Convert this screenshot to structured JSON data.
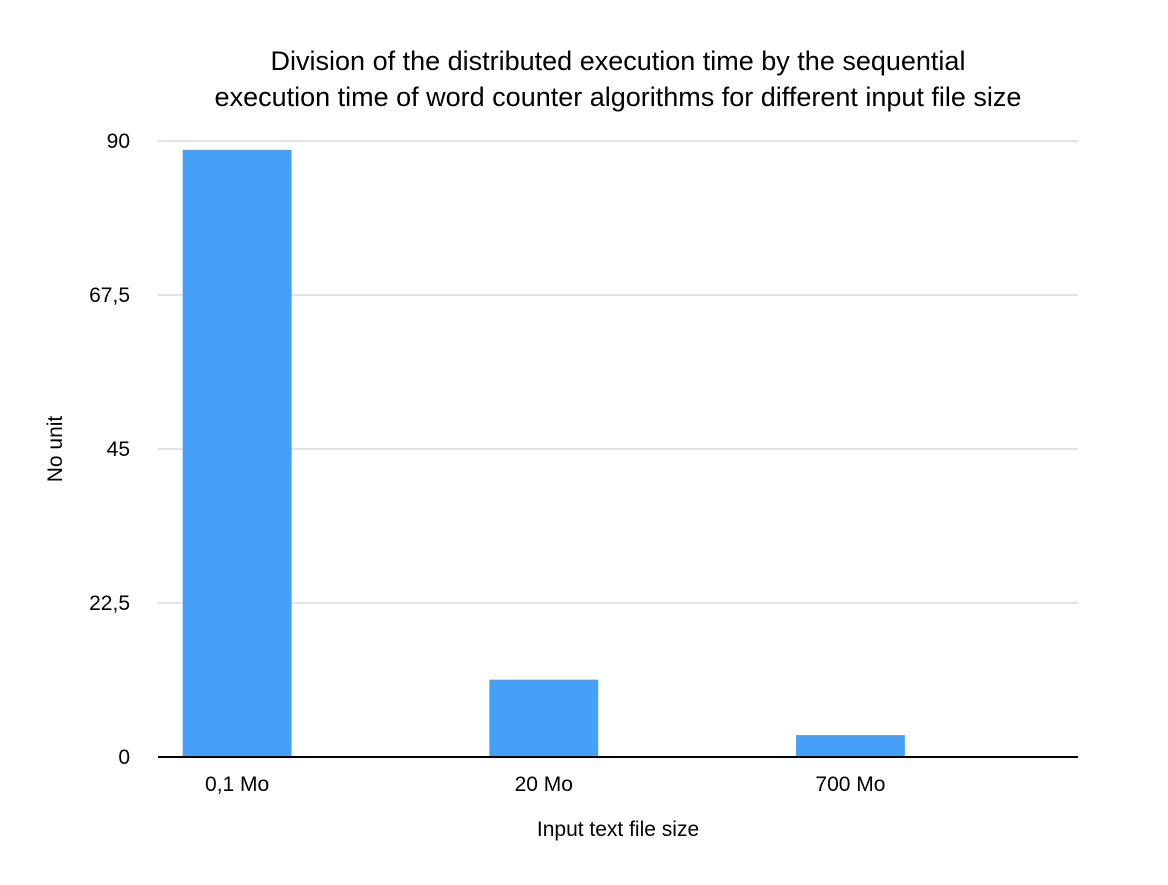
{
  "chart_data": {
    "type": "bar",
    "title_lines": [
      "Division of the distributed execution time by the sequential",
      "execution time of word counter algorithms for different input file size"
    ],
    "xlabel": "Input text file size",
    "ylabel": "No unit",
    "categories": [
      "0,1 Mo",
      "20 Mo",
      "700 Mo"
    ],
    "values": [
      88.7,
      11.3,
      3.2
    ],
    "ylim": [
      0,
      90
    ],
    "yticks": [
      0,
      22.5,
      45,
      67.5,
      90
    ],
    "ytick_labels": [
      "0",
      "22,5",
      "45",
      "67,5",
      "90"
    ],
    "grid": true,
    "legend": "none",
    "colors": {
      "bar": "#45a1f7",
      "grid": "#c4c4c4",
      "axis": "#000000"
    }
  }
}
